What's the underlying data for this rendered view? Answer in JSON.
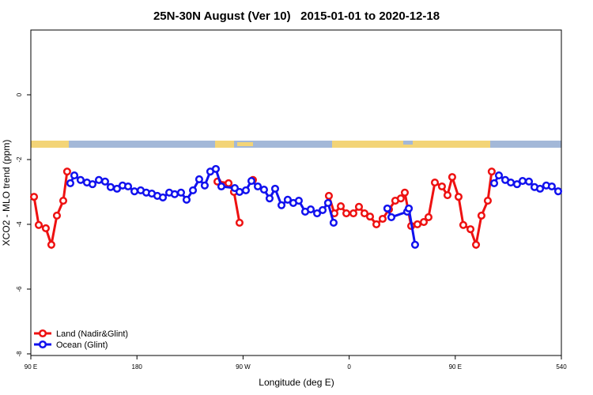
{
  "chart_data": {
    "type": "line",
    "title": "25N-30N August (Ver 10)   2015-01-01 to 2020-12-18",
    "xlabel": "Longitude (deg E)",
    "ylabel": "XCO2 - MLO trend (ppm)",
    "xlim": [
      90,
      540
    ],
    "xticks": [
      {
        "value": 90,
        "label": "90 E"
      },
      180,
      {
        "value": 270,
        "label": "90 W"
      },
      {
        "value": 360,
        "label": "0"
      },
      {
        "value": 450,
        "label": "90 E"
      },
      540
    ],
    "ylim": [
      -8.05,
      2
    ],
    "yticks": [
      0,
      -2,
      -4,
      -6,
      -8
    ],
    "legend": "bottom left",
    "series": [
      {
        "name": "Land (Nadir&Glint)",
        "color": "#ee1111",
        "x": [
          92.7,
          96.7,
          102.7,
          107.4,
          112.1,
          117.5,
          120.8,
          null,
          248.3,
          257.7,
          262.3,
          267.0,
          null,
          278.4,
          null,
          342.8,
          347.5,
          352.9,
          357.6,
          363.6,
          368.3,
          373.0,
          377.7,
          383.1,
          388.4,
          393.8,
          399.1,
          403.8,
          407.2,
          412.6,
          417.9,
          423.3,
          427.3,
          432.7,
          438.7,
          443.4,
          447.4,
          452.8,
          456.8,
          462.9,
          467.6,
          472.2,
          477.6,
          480.9
        ],
        "values": [
          -3.15,
          -4.02,
          -4.12,
          -4.63,
          -3.73,
          -3.27,
          -2.37,
          null,
          -2.68,
          -2.73,
          -3.0,
          -3.95,
          null,
          -2.63,
          null,
          -3.12,
          -3.66,
          -3.44,
          -3.66,
          -3.66,
          -3.46,
          -3.66,
          -3.76,
          -4.0,
          -3.83,
          -3.54,
          -3.27,
          -3.2,
          -3.02,
          -4.05,
          -4.0,
          -3.93,
          -3.78,
          -2.71,
          -2.83,
          -3.1,
          -2.54,
          -3.15,
          -4.02,
          -4.15,
          -4.63,
          -3.73,
          -3.27,
          -2.37
        ]
      },
      {
        "name": "Ocean (Glint)",
        "color": "#1111ee",
        "x": [
          123.5,
          126.9,
          132.2,
          137.6,
          142.3,
          147.7,
          153.0,
          157.7,
          163.1,
          167.8,
          172.5,
          177.9,
          183.2,
          187.9,
          192.6,
          197.3,
          202.0,
          207.4,
          212.0,
          217.4,
          222.1,
          227.5,
          232.8,
          237.5,
          242.2,
          246.9,
          251.6,
          263.0,
          267.0,
          272.4,
          277.1,
          282.5,
          287.8,
          292.5,
          297.2,
          302.6,
          307.9,
          312.6,
          317.3,
          322.7,
          327.4,
          332.8,
          337.5,
          342.1,
          346.8,
          null,
          392.4,
          395.8,
          409.2,
          410.6,
          415.9,
          null,
          483.0,
          487.0,
          492.4,
          497.1,
          502.4,
          507.1,
          512.5,
          517.2,
          521.9,
          527.2,
          531.9,
          537.3
        ],
        "values": [
          -2.73,
          -2.49,
          -2.63,
          -2.71,
          -2.76,
          -2.63,
          -2.68,
          -2.85,
          -2.9,
          -2.8,
          -2.83,
          -2.98,
          -2.95,
          -3.02,
          -3.05,
          -3.12,
          -3.17,
          -3.02,
          -3.07,
          -3.02,
          -3.24,
          -2.95,
          -2.61,
          -2.8,
          -2.37,
          -2.29,
          -2.83,
          -2.88,
          -3.0,
          -2.95,
          -2.66,
          -2.83,
          -2.93,
          -3.2,
          -2.9,
          -3.41,
          -3.24,
          -3.34,
          -3.27,
          -3.61,
          -3.54,
          -3.66,
          -3.56,
          -3.34,
          -3.95,
          null,
          -3.51,
          -3.78,
          -3.61,
          -3.51,
          -4.63,
          null,
          -2.73,
          -2.49,
          -2.63,
          -2.71,
          -2.76,
          -2.66,
          -2.68,
          -2.85,
          -2.9,
          -2.8,
          -2.83,
          -2.98
        ]
      }
    ]
  }
}
